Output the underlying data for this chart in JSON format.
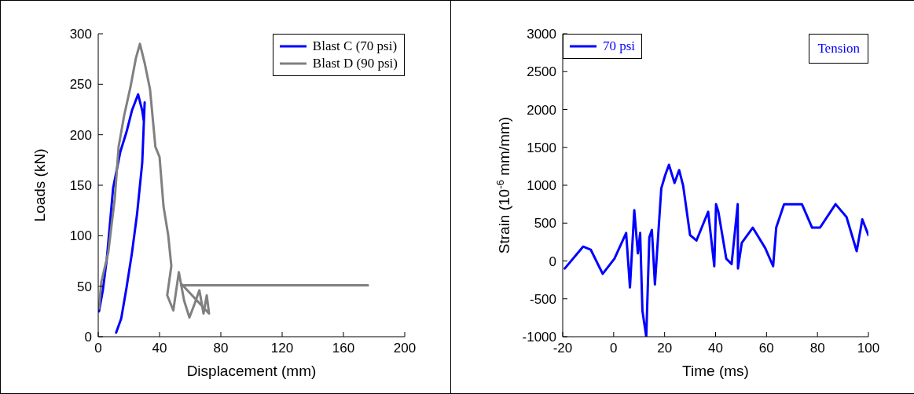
{
  "chart_data": [
    {
      "type": "line",
      "xlabel": "Displacement (mm)",
      "ylabel": "Loads (kN)",
      "xlim": [
        0,
        200
      ],
      "xticks": [
        0,
        40,
        80,
        120,
        160,
        200
      ],
      "ylim": [
        0,
        300
      ],
      "yticks": [
        0,
        50,
        100,
        150,
        200,
        250,
        300
      ],
      "legend": "top right",
      "marker": "none",
      "line_style": "solid",
      "series": [
        {
          "name": "Blast C (70 psi)",
          "color": "#0000ff",
          "x": [
            0.5,
            3,
            5.6,
            9.7,
            14.4,
            18.5,
            22,
            26,
            28.7,
            29.7,
            30.3,
            28.7,
            25.3,
            22,
            18.5,
            15,
            11.7
          ],
          "values": [
            25,
            46,
            77,
            147,
            183,
            203,
            224,
            240,
            224,
            214,
            232,
            172,
            121,
            83,
            49,
            18,
            4
          ]
        },
        {
          "name": "Blast D (90 psi)",
          "color": "#808080",
          "x": [
            0.5,
            2,
            6.5,
            10.8,
            13.3,
            16.9,
            21,
            24.6,
            27.2,
            30.3,
            33.8,
            37.3,
            40,
            42.6,
            45.7,
            47.7,
            45,
            49,
            52.6,
            56,
            59.5,
            63,
            66,
            68.7,
            70.8,
            72.3,
            54.4,
            54,
            176
          ],
          "values": [
            28,
            54,
            83,
            137,
            188,
            219,
            247,
            276,
            290,
            271,
            245,
            188,
            178,
            129,
            100,
            70,
            41,
            26,
            64,
            36,
            19,
            33,
            46,
            23,
            41,
            23,
            52,
            51,
            51
          ]
        }
      ]
    },
    {
      "type": "line",
      "xlabel": "Time (ms)",
      "ylabel": "Strain (10$^{-6}$ mm/mm)",
      "xlim": [
        -20,
        100
      ],
      "xticks": [
        -20,
        0,
        20,
        40,
        60,
        80,
        100
      ],
      "ylim": [
        -1000,
        3000
      ],
      "yticks": [
        -1000,
        -500,
        0,
        500,
        1000,
        1500,
        2000,
        2500,
        3000
      ],
      "legend": "top left",
      "marker": "none",
      "line_style": "solid",
      "annotations": [
        "Tension"
      ],
      "series": [
        {
          "name": "70 psi",
          "color": "#0000ff",
          "x": [
            -19.2,
            -12,
            -9,
            -4.3,
            0.3,
            4.9,
            6.4,
            8.1,
            9.5,
            10.4,
            11.3,
            12.8,
            14,
            15,
            16.2,
            18.7,
            20.2,
            21.7,
            23.9,
            25.7,
            27.3,
            30,
            32.5,
            37.1,
            39.5,
            40.2,
            41.1,
            44.2,
            46.3,
            48.7,
            48.8,
            50.3,
            54.6,
            59.5,
            62.6,
            63.8,
            66.9,
            70.9,
            73.9,
            77.9,
            81,
            87.1,
            91.4,
            95.4,
            97.6,
            100
          ],
          "values": [
            -100,
            190,
            150,
            -170,
            30,
            370,
            -350,
            670,
            100,
            370,
            -660,
            -1000,
            310,
            410,
            -310,
            960,
            1130,
            1270,
            1030,
            1200,
            990,
            340,
            270,
            650,
            -70,
            750,
            650,
            30,
            -40,
            750,
            -100,
            240,
            440,
            170,
            -70,
            440,
            750,
            750,
            750,
            440,
            440,
            750,
            580,
            130,
            550,
            340
          ]
        }
      ]
    }
  ]
}
